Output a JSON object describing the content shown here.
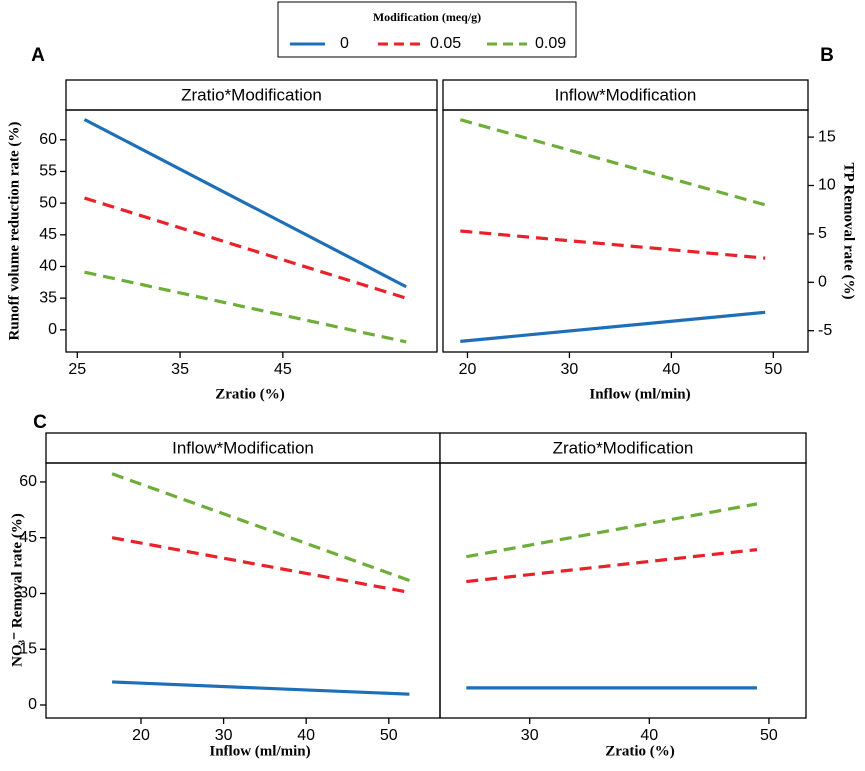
{
  "legend_title": "Modification (meq/g)",
  "chart_data": [
    {
      "type": "line",
      "panel": "A",
      "title": "Zratio*Modification",
      "xlabel": "Zratio (%)",
      "ylabel": "Runoff volume reduction rate (%)",
      "x": [
        25.7,
        57
      ],
      "xlim": [
        23.9,
        60
      ],
      "xticks": [
        25,
        35,
        45
      ],
      "ylim": [
        26.5,
        64.7
      ],
      "yticks": [
        {
          "value": 30,
          "label": "0"
        },
        35,
        40,
        45,
        50,
        55,
        60
      ],
      "series": [
        {
          "name": "0",
          "color": "#1f6fb8",
          "dash": false,
          "values": [
            63.2,
            36.8
          ]
        },
        {
          "name": "0.05",
          "color": "#e8212a",
          "dash": true,
          "values": [
            50.8,
            35
          ]
        },
        {
          "name": "0.09",
          "color": "#6fad3a",
          "dash": true,
          "values": [
            39.1,
            28.1
          ]
        }
      ]
    },
    {
      "type": "line",
      "panel": "B",
      "title": "Inflow*Modification",
      "xlabel": "Inflow (ml/min)",
      "ylabel": "TP Removal rate (%)",
      "yaxis_side": "right",
      "x": [
        19.3,
        49.2
      ],
      "xlim": [
        17.6,
        53.4
      ],
      "xticks": [
        20,
        30,
        40,
        50
      ],
      "ylim": [
        -7.2,
        17.8
      ],
      "yticks": [
        -5,
        0,
        5,
        10,
        15
      ],
      "series": [
        {
          "name": "0",
          "color": "#1f6fb8",
          "dash": false,
          "values": [
            -6.1,
            -3.1
          ]
        },
        {
          "name": "0.05",
          "color": "#e8212a",
          "dash": true,
          "values": [
            5.3,
            2.5
          ]
        },
        {
          "name": "0.09",
          "color": "#6fad3a",
          "dash": true,
          "values": [
            16.8,
            8.0
          ]
        }
      ]
    },
    {
      "type": "line",
      "panel": "C",
      "title": "Inflow*Modification",
      "xlabel": "Inflow (ml/min)",
      "ylabel": "NO₃⁻ Removal rate (%)",
      "x": [
        16.5,
        52.5
      ],
      "xlim": [
        8.5,
        56.2
      ],
      "xticks": [
        20,
        30,
        40,
        50
      ],
      "ylim": [
        -3.5,
        65.1
      ],
      "yticks": [
        0,
        15,
        30,
        45,
        60
      ],
      "series": [
        {
          "name": "0",
          "color": "#1f6fb8",
          "dash": false,
          "values": [
            6.2,
            2.9
          ]
        },
        {
          "name": "0.05",
          "color": "#e8212a",
          "dash": true,
          "values": [
            45,
            30.3
          ]
        },
        {
          "name": "0.09",
          "color": "#6fad3a",
          "dash": true,
          "values": [
            62.2,
            33.5
          ]
        }
      ]
    },
    {
      "type": "line",
      "title": "Zratio*Modification",
      "xlabel": "Zratio (%)",
      "x": [
        24.7,
        49
      ],
      "xlim": [
        22.5,
        53.1
      ],
      "xticks": [
        30,
        40,
        50
      ],
      "ylim": [
        -3.5,
        65.1
      ],
      "series": [
        {
          "name": "0",
          "color": "#1f6fb8",
          "dash": false,
          "values": [
            4.6,
            4.6
          ]
        },
        {
          "name": "0.05",
          "color": "#e8212a",
          "dash": true,
          "values": [
            33.2,
            41.8
          ]
        },
        {
          "name": "0.09",
          "color": "#6fad3a",
          "dash": true,
          "values": [
            39.9,
            54.1
          ]
        }
      ]
    }
  ]
}
